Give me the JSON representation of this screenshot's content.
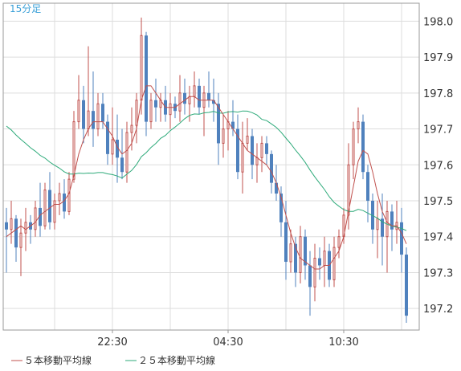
{
  "chart_data": {
    "type": "candlestick",
    "period_label": "15分足",
    "x_ticks": [
      "22:30",
      "04:30",
      "10:30"
    ],
    "y_ticks": [
      "198.0",
      "197.9",
      "197.8",
      "197.7",
      "197.6",
      "197.5",
      "197.4",
      "197.3",
      "197.2"
    ],
    "ylim": [
      197.14,
      198.05
    ],
    "grid": true,
    "colors": {
      "up": "#c0504d",
      "down": "#4f81bd",
      "ma5": "#c0504d",
      "ma25": "#2eaa7a",
      "grid": "#dddddd",
      "border": "#999999"
    },
    "legend": [
      {
        "label": "５本移動平均線",
        "color": "#c0504d"
      },
      {
        "label": "２５本移動平均線",
        "color": "#2eaa7a"
      }
    ],
    "candles": [
      [
        197.44,
        197.48,
        197.3,
        197.42
      ],
      [
        197.42,
        197.5,
        197.38,
        197.45
      ],
      [
        197.45,
        197.46,
        197.33,
        197.37
      ],
      [
        197.37,
        197.45,
        197.29,
        197.41
      ],
      [
        197.41,
        197.48,
        197.36,
        197.44
      ],
      [
        197.44,
        197.46,
        197.38,
        197.42
      ],
      [
        197.42,
        197.5,
        197.4,
        197.48
      ],
      [
        197.48,
        197.55,
        197.4,
        197.43
      ],
      [
        197.43,
        197.55,
        197.42,
        197.53
      ],
      [
        197.53,
        197.58,
        197.42,
        197.44
      ],
      [
        197.44,
        197.52,
        197.42,
        197.5
      ],
      [
        197.5,
        197.55,
        197.46,
        197.52
      ],
      [
        197.52,
        197.56,
        197.45,
        197.47
      ],
      [
        197.47,
        197.58,
        197.46,
        197.56
      ],
      [
        197.56,
        197.75,
        197.55,
        197.72
      ],
      [
        197.72,
        197.85,
        197.7,
        197.78
      ],
      [
        197.78,
        197.82,
        197.66,
        197.7
      ],
      [
        197.7,
        197.93,
        197.68,
        197.75
      ],
      [
        197.75,
        197.86,
        197.65,
        197.7
      ],
      [
        197.7,
        197.8,
        197.68,
        197.77
      ],
      [
        197.77,
        197.8,
        197.7,
        197.72
      ],
      [
        197.72,
        197.74,
        197.6,
        197.63
      ],
      [
        197.63,
        197.76,
        197.6,
        197.67
      ],
      [
        197.67,
        197.74,
        197.55,
        197.62
      ],
      [
        197.62,
        197.7,
        197.56,
        197.58
      ],
      [
        197.58,
        197.72,
        197.55,
        197.69
      ],
      [
        197.69,
        197.76,
        197.64,
        197.71
      ],
      [
        197.71,
        197.8,
        197.66,
        197.78
      ],
      [
        197.78,
        198.01,
        197.74,
        197.96
      ],
      [
        197.96,
        197.97,
        197.68,
        197.72
      ],
      [
        197.72,
        197.8,
        197.7,
        197.78
      ],
      [
        197.78,
        197.84,
        197.72,
        197.76
      ],
      [
        197.76,
        197.8,
        197.72,
        197.78
      ],
      [
        197.78,
        197.82,
        197.72,
        197.74
      ],
      [
        197.74,
        197.8,
        197.7,
        197.77
      ],
      [
        197.77,
        197.79,
        197.73,
        197.75
      ],
      [
        197.75,
        197.85,
        197.72,
        197.8
      ],
      [
        197.8,
        197.84,
        197.74,
        197.77
      ],
      [
        197.77,
        197.82,
        197.72,
        197.79
      ],
      [
        197.79,
        197.86,
        197.76,
        197.82
      ],
      [
        197.82,
        197.84,
        197.74,
        197.76
      ],
      [
        197.76,
        197.82,
        197.68,
        197.8
      ],
      [
        197.8,
        197.86,
        197.76,
        197.78
      ],
      [
        197.78,
        197.84,
        197.72,
        197.77
      ],
      [
        197.77,
        197.8,
        197.6,
        197.66
      ],
      [
        197.66,
        197.74,
        197.62,
        197.7
      ],
      [
        197.7,
        197.75,
        197.64,
        197.72
      ],
      [
        197.72,
        197.78,
        197.68,
        197.7
      ],
      [
        197.7,
        197.74,
        197.56,
        197.58
      ],
      [
        197.58,
        197.72,
        197.52,
        197.66
      ],
      [
        197.66,
        197.73,
        197.64,
        197.68
      ],
      [
        197.68,
        197.7,
        197.56,
        197.6
      ],
      [
        197.6,
        197.66,
        197.55,
        197.62
      ],
      [
        197.62,
        197.68,
        197.58,
        197.66
      ],
      [
        197.66,
        197.68,
        197.6,
        197.63
      ],
      [
        197.63,
        197.64,
        197.52,
        197.55
      ],
      [
        197.55,
        197.6,
        197.5,
        197.52
      ],
      [
        197.52,
        197.54,
        197.4,
        197.44
      ],
      [
        197.44,
        197.5,
        197.28,
        197.33
      ],
      [
        197.33,
        197.42,
        197.3,
        197.38
      ],
      [
        197.38,
        197.4,
        197.26,
        197.3
      ],
      [
        197.3,
        197.43,
        197.27,
        197.4
      ],
      [
        197.4,
        197.42,
        197.28,
        197.32
      ],
      [
        197.32,
        197.36,
        197.18,
        197.26
      ],
      [
        197.26,
        197.38,
        197.22,
        197.34
      ],
      [
        197.34,
        197.37,
        197.28,
        197.32
      ],
      [
        197.32,
        197.4,
        197.26,
        197.36
      ],
      [
        197.36,
        197.38,
        197.26,
        197.28
      ],
      [
        197.28,
        197.4,
        197.26,
        197.37
      ],
      [
        197.37,
        197.42,
        197.34,
        197.4
      ],
      [
        197.4,
        197.48,
        197.38,
        197.46
      ],
      [
        197.46,
        197.66,
        197.42,
        197.6
      ],
      [
        197.6,
        197.72,
        197.56,
        197.7
      ],
      [
        197.7,
        197.76,
        197.66,
        197.72
      ],
      [
        197.72,
        197.74,
        197.56,
        197.58
      ],
      [
        197.58,
        197.6,
        197.44,
        197.5
      ],
      [
        197.5,
        197.52,
        197.38,
        197.42
      ],
      [
        197.42,
        197.5,
        197.34,
        197.45
      ],
      [
        197.45,
        197.52,
        197.32,
        197.4
      ],
      [
        197.4,
        197.5,
        197.3,
        197.47
      ],
      [
        197.47,
        197.49,
        197.36,
        197.42
      ],
      [
        197.42,
        197.5,
        197.38,
        197.44
      ],
      [
        197.44,
        197.48,
        197.3,
        197.35
      ],
      [
        197.35,
        197.37,
        197.16,
        197.18
      ]
    ],
    "ma5": [
      197.4,
      197.41,
      197.42,
      197.43,
      197.42,
      197.43,
      197.44,
      197.46,
      197.47,
      197.48,
      197.49,
      197.49,
      197.5,
      197.52,
      197.57,
      197.63,
      197.67,
      197.7,
      197.72,
      197.72,
      197.72,
      197.7,
      197.68,
      197.65,
      197.63,
      197.64,
      197.66,
      197.7,
      197.78,
      197.82,
      197.82,
      197.8,
      197.78,
      197.76,
      197.76,
      197.76,
      197.77,
      197.78,
      197.79,
      197.79,
      197.78,
      197.78,
      197.78,
      197.78,
      197.76,
      197.74,
      197.72,
      197.7,
      197.68,
      197.66,
      197.64,
      197.63,
      197.62,
      197.61,
      197.6,
      197.58,
      197.55,
      197.51,
      197.46,
      197.41,
      197.37,
      197.34,
      197.33,
      197.32,
      197.31,
      197.31,
      197.32,
      197.32,
      197.34,
      197.36,
      197.4,
      197.47,
      197.54,
      197.61,
      197.64,
      197.63,
      197.58,
      197.52,
      197.47,
      197.44,
      197.43,
      197.43,
      197.41,
      197.38
    ]
  }
}
